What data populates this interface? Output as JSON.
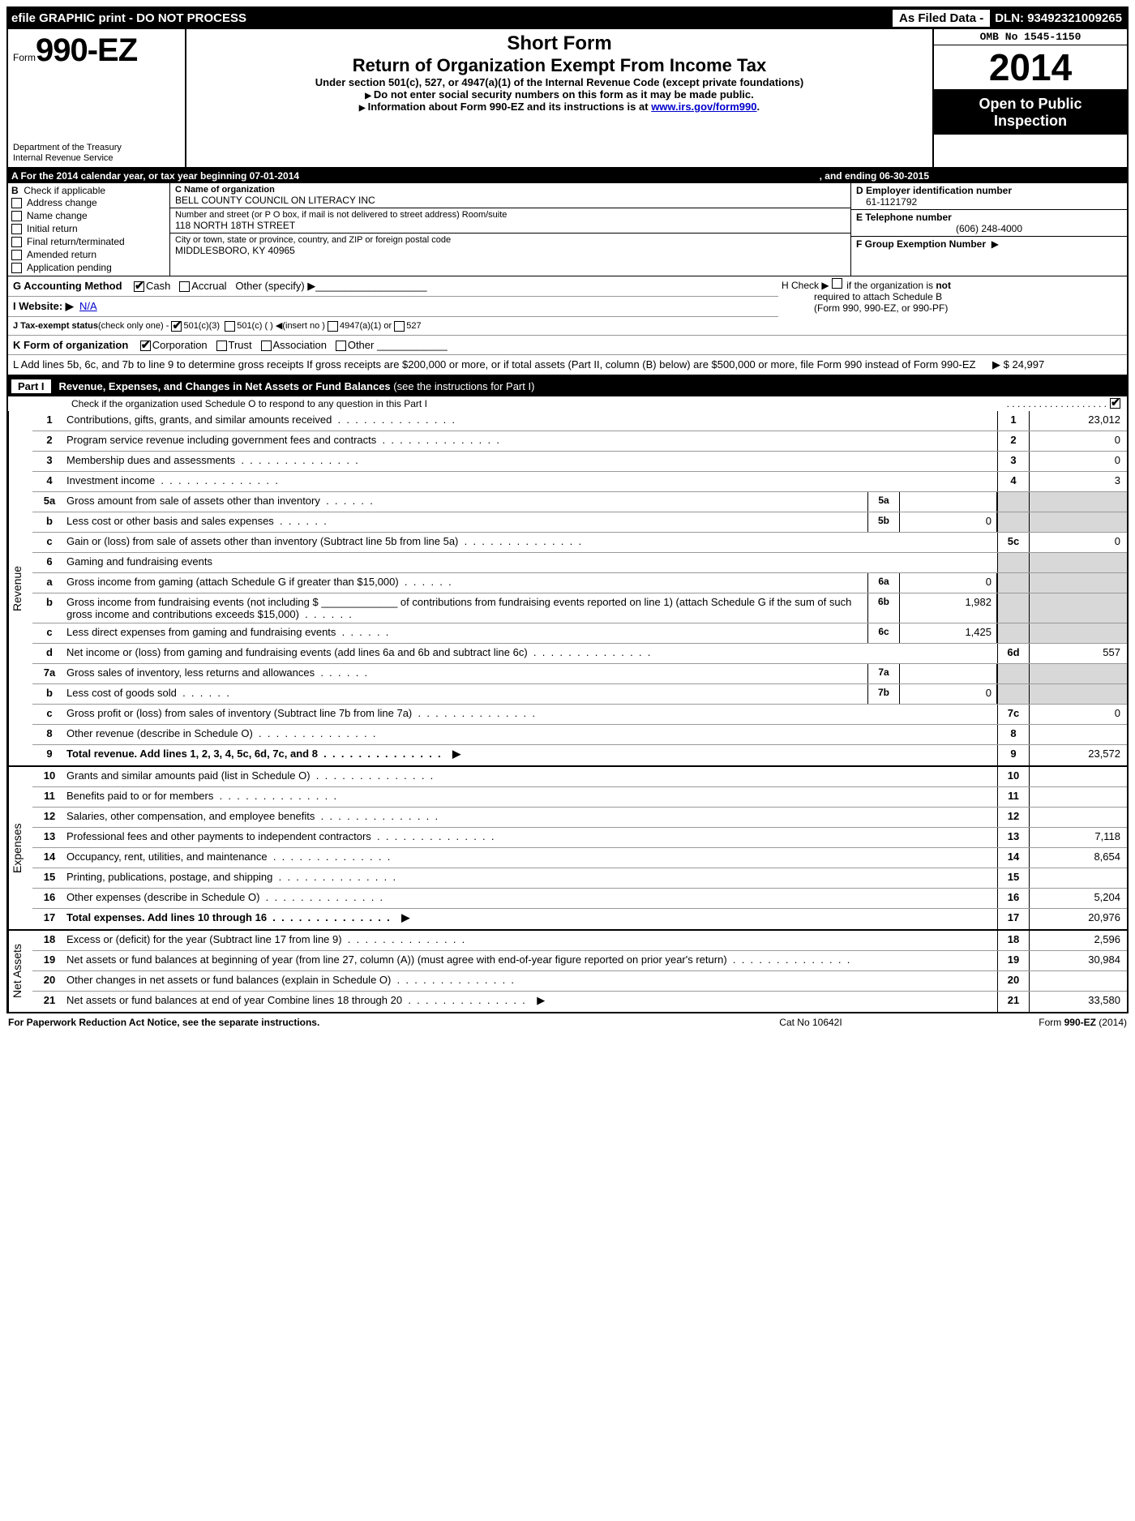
{
  "topbar": {
    "left": "efile GRAPHIC print - DO NOT PROCESS",
    "mid": "As Filed Data -",
    "right": "DLN: 93492321009265"
  },
  "header": {
    "form_prefix": "Form",
    "form_num": "990-EZ",
    "dept1": "Department of the Treasury",
    "dept2": "Internal Revenue Service",
    "short_form": "Short Form",
    "title": "Return of Organization Exempt From Income Tax",
    "sub": "Under section 501(c), 527, or 4947(a)(1) of the Internal Revenue Code (except private foundations)",
    "note1": "Do not enter social security numbers on this form as it may be made public.",
    "note2_pre": "Information about Form 990-EZ and its instructions is at ",
    "note2_link": "www.irs.gov/form990",
    "omb": "OMB No 1545-1150",
    "year": "2014",
    "open1": "Open to Public",
    "open2": "Inspection"
  },
  "row_a": {
    "left": "A  For the 2014 calendar year, or tax year beginning 07-01-2014",
    "right": ", and ending 06-30-2015"
  },
  "col_b": {
    "heading": "B",
    "check_label": "Check if applicable",
    "opts": [
      "Address change",
      "Name change",
      "Initial return",
      "Final return/terminated",
      "Amended return",
      "Application pending"
    ]
  },
  "col_c": {
    "name_label": "C Name of organization",
    "name": "BELL COUNTY COUNCIL ON LITERACY INC",
    "addr_label": "Number and street (or P  O  box, if mail is not delivered to street address) Room/suite",
    "addr": "118 NORTH 18TH STREET",
    "city_label": "City or town, state or province, country, and ZIP or foreign postal code",
    "city": "MIDDLESBORO, KY  40965"
  },
  "col_de": {
    "d_label": "D Employer identification number",
    "d_val": "61-1121792",
    "e_label": "E Telephone number",
    "e_val": "(606) 248-4000",
    "f_label": "F Group Exemption Number",
    "f_arrow": "▶"
  },
  "g": {
    "label": "G Accounting Method",
    "cash": "Cash",
    "accrual": "Accrual",
    "other": "Other (specify) ▶",
    "blank": "___________________"
  },
  "h": {
    "text1": "H  Check ▶",
    "text2": "if the organization is",
    "not": "not",
    "text3": "required to attach Schedule B",
    "text4": "(Form 990, 990-EZ, or 990-PF)"
  },
  "i": {
    "label": "I Website: ▶",
    "val": "N/A"
  },
  "j": {
    "label": "J Tax-exempt status",
    "sub": "(check only one) -",
    "o1": "501(c)(3)",
    "o2": "501(c) (    ) ◀(insert no )",
    "o3": "4947(a)(1) or",
    "o4": "527"
  },
  "k": {
    "label": "K Form of organization",
    "o1": "Corporation",
    "o2": "Trust",
    "o3": "Association",
    "o4": "Other"
  },
  "l": {
    "text": "L Add lines 5b, 6c, and 7b to line 9 to determine gross receipts  If gross receipts are $200,000 or more, or if total assets (Part II, column (B) below) are $500,000 or more, file Form 990 instead of Form 990-EZ",
    "arrow": "▶",
    "amt": "$ 24,997"
  },
  "part1": {
    "tag": "Part I",
    "title": "Revenue, Expenses, and Changes in Net Assets or Fund Balances",
    "paren": "(see the instructions for Part I)",
    "sub": "Check if the organization used Schedule O to respond to any question in this Part I"
  },
  "sections": {
    "revenue": "Revenue",
    "expenses": "Expenses",
    "netassets": "Net Assets"
  },
  "lines": {
    "l1": {
      "n": "1",
      "d": "Contributions, gifts, grants, and similar amounts received",
      "rn": "1",
      "a": "23,012"
    },
    "l2": {
      "n": "2",
      "d": "Program service revenue including government fees and contracts",
      "rn": "2",
      "a": "0"
    },
    "l3": {
      "n": "3",
      "d": "Membership dues and assessments",
      "rn": "3",
      "a": "0"
    },
    "l4": {
      "n": "4",
      "d": "Investment income",
      "rn": "4",
      "a": "3"
    },
    "l5a": {
      "n": "5a",
      "d": "Gross amount from sale of assets other than inventory",
      "sn": "5a",
      "sa": ""
    },
    "l5b": {
      "n": "b",
      "d": "Less  cost or other basis and sales expenses",
      "sn": "5b",
      "sa": "0"
    },
    "l5c": {
      "n": "c",
      "d": "Gain or (loss) from sale of assets other than inventory (Subtract line 5b from line 5a)",
      "rn": "5c",
      "a": "0"
    },
    "l6": {
      "n": "6",
      "d": "Gaming and fundraising events"
    },
    "l6a": {
      "n": "a",
      "d": "Gross income from gaming (attach Schedule G if greater than $15,000)",
      "sn": "6a",
      "sa": "0"
    },
    "l6b": {
      "n": "b",
      "d": "Gross income from fundraising events (not including $ _____________ of contributions from fundraising events reported on line 1) (attach Schedule G if the sum of such gross income and contributions exceeds $15,000)",
      "sn": "6b",
      "sa": "1,982"
    },
    "l6c": {
      "n": "c",
      "d": "Less  direct expenses from gaming and fundraising events",
      "sn": "6c",
      "sa": "1,425"
    },
    "l6d": {
      "n": "d",
      "d": "Net income or (loss) from gaming and fundraising events (add lines 6a and 6b and subtract line 6c)",
      "rn": "6d",
      "a": "557"
    },
    "l7a": {
      "n": "7a",
      "d": "Gross sales of inventory, less returns and allowances",
      "sn": "7a",
      "sa": ""
    },
    "l7b": {
      "n": "b",
      "d": "Less  cost of goods sold",
      "sn": "7b",
      "sa": "0"
    },
    "l7c": {
      "n": "c",
      "d": "Gross profit or (loss) from sales of inventory (Subtract line 7b from line 7a)",
      "rn": "7c",
      "a": "0"
    },
    "l8": {
      "n": "8",
      "d": "Other revenue (describe in Schedule O)",
      "rn": "8",
      "a": ""
    },
    "l9": {
      "n": "9",
      "d": "Total revenue. Add lines 1, 2, 3, 4, 5c, 6d, 7c, and 8",
      "rn": "9",
      "a": "23,572",
      "b": true,
      "ar": true
    },
    "l10": {
      "n": "10",
      "d": "Grants and similar amounts paid (list in Schedule O)",
      "rn": "10",
      "a": ""
    },
    "l11": {
      "n": "11",
      "d": "Benefits paid to or for members",
      "rn": "11",
      "a": ""
    },
    "l12": {
      "n": "12",
      "d": "Salaries, other compensation, and employee benefits",
      "rn": "12",
      "a": ""
    },
    "l13": {
      "n": "13",
      "d": "Professional fees and other payments to independent contractors",
      "rn": "13",
      "a": "7,118"
    },
    "l14": {
      "n": "14",
      "d": "Occupancy, rent, utilities, and maintenance",
      "rn": "14",
      "a": "8,654"
    },
    "l15": {
      "n": "15",
      "d": "Printing, publications, postage, and shipping",
      "rn": "15",
      "a": ""
    },
    "l16": {
      "n": "16",
      "d": "Other expenses (describe in Schedule O)",
      "rn": "16",
      "a": "5,204"
    },
    "l17": {
      "n": "17",
      "d": "Total expenses. Add lines 10 through 16",
      "rn": "17",
      "a": "20,976",
      "b": true,
      "ar": true
    },
    "l18": {
      "n": "18",
      "d": "Excess or (deficit) for the year (Subtract line 17 from line 9)",
      "rn": "18",
      "a": "2,596"
    },
    "l19": {
      "n": "19",
      "d": "Net assets or fund balances at beginning of year (from line 27, column (A)) (must agree with end-of-year figure reported on prior year's return)",
      "rn": "19",
      "a": "30,984"
    },
    "l20": {
      "n": "20",
      "d": "Other changes in net assets or fund balances (explain in Schedule O)",
      "rn": "20",
      "a": ""
    },
    "l21": {
      "n": "21",
      "d": "Net assets or fund balances at end of year Combine lines 18 through 20",
      "rn": "21",
      "a": "33,580",
      "ar": true
    }
  },
  "footer": {
    "l": "For Paperwork Reduction Act Notice, see the separate instructions.",
    "m": "Cat No 10642I",
    "r_pre": "Form ",
    "r_form": "990-EZ",
    "r_suf": " (2014)"
  }
}
